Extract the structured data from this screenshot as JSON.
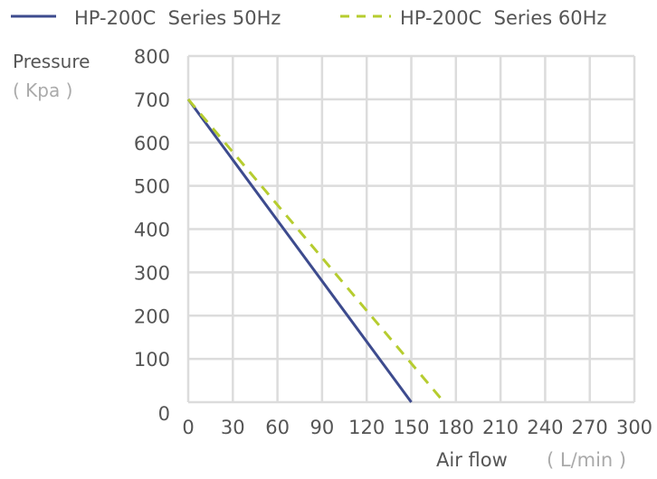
{
  "chart_data": {
    "type": "line",
    "title": "",
    "ylabel": "Pressure",
    "ylabel_unit": "( Kpa )",
    "xlabel": "Air flow",
    "xlabel_unit": "( L/min )",
    "xlim": [
      0,
      300
    ],
    "ylim": [
      0,
      800
    ],
    "x_ticks": [
      0,
      30,
      60,
      90,
      120,
      150,
      180,
      210,
      240,
      270,
      300
    ],
    "y_ticks": [
      0,
      100,
      200,
      300,
      400,
      500,
      600,
      700,
      800
    ],
    "grid": true,
    "legend_position": "top",
    "series": [
      {
        "name": "HP-200C  Series 50Hz",
        "style": "solid",
        "color": "#3d4b8e",
        "x": [
          0,
          150
        ],
        "y": [
          700,
          0
        ]
      },
      {
        "name": "HP-200C  Series 60Hz",
        "style": "dashed",
        "color": "#b6cc2f",
        "x": [
          0,
          172
        ],
        "y": [
          700,
          0
        ]
      }
    ]
  }
}
